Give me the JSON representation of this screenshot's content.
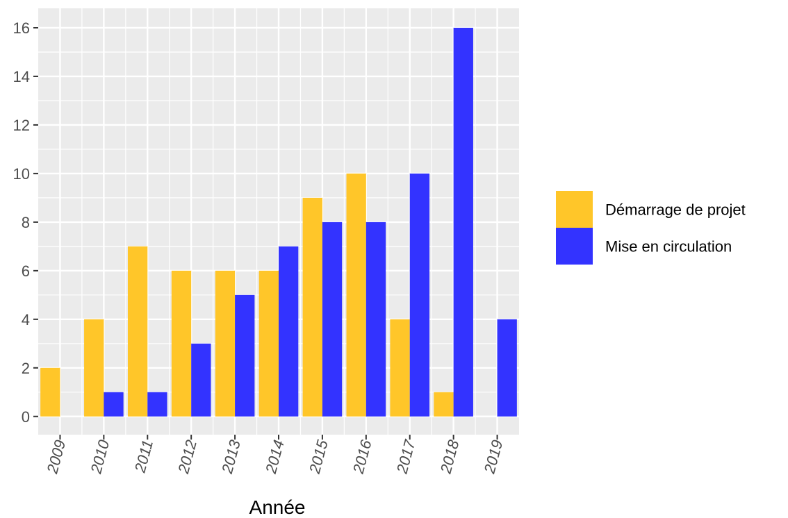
{
  "chart_data": {
    "type": "bar",
    "title": "",
    "xlabel": "Année",
    "ylabel": "",
    "categories": [
      "2009",
      "2010",
      "2011",
      "2012",
      "2013",
      "2014",
      "2015",
      "2016",
      "2017",
      "2018",
      "2019"
    ],
    "series": [
      {
        "name": "Démarrage de projet",
        "color": "#FFC629",
        "values": [
          2,
          4,
          7,
          6,
          6,
          6,
          9,
          10,
          4,
          1,
          0
        ]
      },
      {
        "name": "Mise en circulation",
        "color": "#3333FF",
        "values": [
          0,
          1,
          1,
          3,
          5,
          7,
          8,
          8,
          10,
          16,
          4
        ]
      }
    ],
    "ylim": [
      -0.75,
      16.8
    ],
    "yticks": [
      0,
      2,
      4,
      6,
      8,
      10,
      12,
      14,
      16
    ],
    "grid": true,
    "legend_position": "right",
    "panel_background": "#EBEBEB",
    "grid_color": "#FFFFFF"
  }
}
